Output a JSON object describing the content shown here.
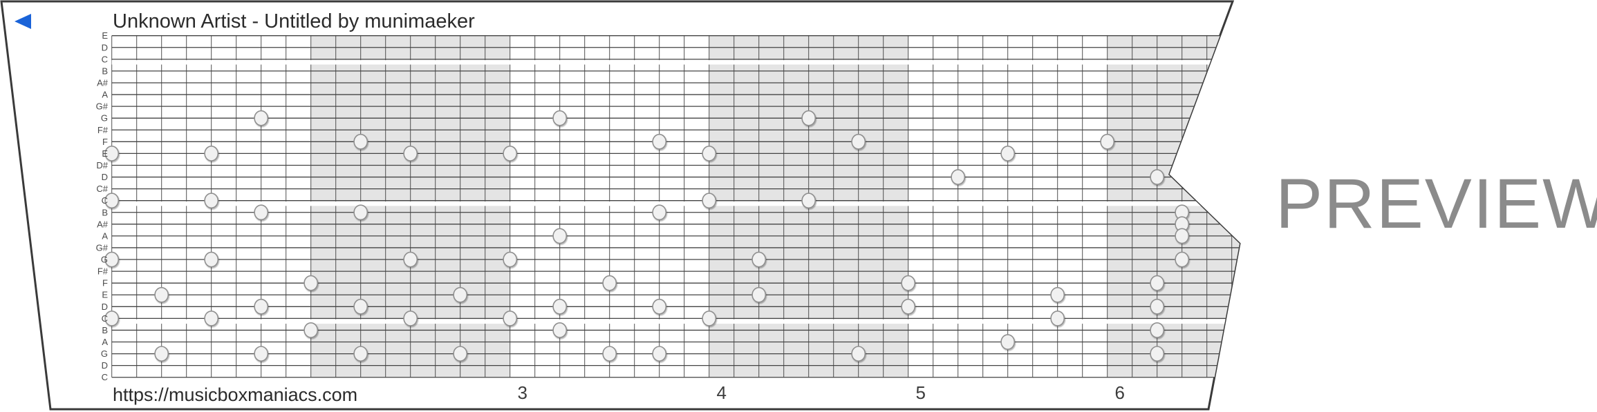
{
  "strip": {
    "title": "Unknown Artist - Untitled by munimaeker",
    "url": "https://musicboxmaniacs.com",
    "measure_numbers": [
      "3",
      "4",
      "5",
      "6"
    ],
    "row_labels": [
      "E",
      "D",
      "C",
      "B",
      "A#",
      "A",
      "G#",
      "G",
      "F#",
      "F",
      "E",
      "D#",
      "D",
      "C#",
      "C",
      "B",
      "A#",
      "A",
      "G#",
      "G",
      "F#",
      "F",
      "E",
      "D",
      "C",
      "B",
      "A",
      "G",
      "D",
      "C"
    ],
    "notes": [
      {
        "col": 0,
        "row": 10,
        "note": "E"
      },
      {
        "col": 0,
        "row": 14,
        "note": "C"
      },
      {
        "col": 0,
        "row": 19,
        "note": "G"
      },
      {
        "col": 0,
        "row": 24,
        "note": "C"
      },
      {
        "col": 2,
        "row": 22,
        "note": "E"
      },
      {
        "col": 2,
        "row": 27,
        "note": "G"
      },
      {
        "col": 4,
        "row": 10,
        "note": "E"
      },
      {
        "col": 4,
        "row": 14,
        "note": "C"
      },
      {
        "col": 4,
        "row": 19,
        "note": "G"
      },
      {
        "col": 4,
        "row": 24,
        "note": "C"
      },
      {
        "col": 6,
        "row": 7,
        "note": "G"
      },
      {
        "col": 6,
        "row": 15,
        "note": "B"
      },
      {
        "col": 6,
        "row": 23,
        "note": "D"
      },
      {
        "col": 6,
        "row": 27,
        "note": "G"
      },
      {
        "col": 8,
        "row": 21,
        "note": "F"
      },
      {
        "col": 8,
        "row": 25,
        "note": "B"
      },
      {
        "col": 10,
        "row": 9,
        "note": "F"
      },
      {
        "col": 10,
        "row": 15,
        "note": "B"
      },
      {
        "col": 10,
        "row": 23,
        "note": "D"
      },
      {
        "col": 10,
        "row": 27,
        "note": "G"
      },
      {
        "col": 12,
        "row": 10,
        "note": "E"
      },
      {
        "col": 12,
        "row": 19,
        "note": "G"
      },
      {
        "col": 12,
        "row": 24,
        "note": "C"
      },
      {
        "col": 14,
        "row": 22,
        "note": "E"
      },
      {
        "col": 14,
        "row": 27,
        "note": "G"
      },
      {
        "col": 16,
        "row": 10,
        "note": "E"
      },
      {
        "col": 16,
        "row": 19,
        "note": "G"
      },
      {
        "col": 16,
        "row": 24,
        "note": "C"
      },
      {
        "col": 18,
        "row": 7,
        "note": "G"
      },
      {
        "col": 18,
        "row": 17,
        "note": "A"
      },
      {
        "col": 18,
        "row": 23,
        "note": "D"
      },
      {
        "col": 18,
        "row": 25,
        "note": "B"
      },
      {
        "col": 20,
        "row": 21,
        "note": "F"
      },
      {
        "col": 20,
        "row": 27,
        "note": "G"
      },
      {
        "col": 22,
        "row": 9,
        "note": "F"
      },
      {
        "col": 22,
        "row": 15,
        "note": "B"
      },
      {
        "col": 22,
        "row": 23,
        "note": "D"
      },
      {
        "col": 22,
        "row": 27,
        "note": "G"
      },
      {
        "col": 24,
        "row": 10,
        "note": "E"
      },
      {
        "col": 24,
        "row": 14,
        "note": "C"
      },
      {
        "col": 24,
        "row": 24,
        "note": "C"
      },
      {
        "col": 26,
        "row": 19,
        "note": "G"
      },
      {
        "col": 26,
        "row": 22,
        "note": "E"
      },
      {
        "col": 28,
        "row": 7,
        "note": "G"
      },
      {
        "col": 28,
        "row": 14,
        "note": "C"
      },
      {
        "col": 30,
        "row": 9,
        "note": "F"
      },
      {
        "col": 30,
        "row": 27,
        "note": "G"
      },
      {
        "col": 32,
        "row": 21,
        "note": "F"
      },
      {
        "col": 32,
        "row": 23,
        "note": "D"
      },
      {
        "col": 34,
        "row": 12,
        "note": "D"
      },
      {
        "col": 36,
        "row": 10,
        "note": "E"
      },
      {
        "col": 36,
        "row": 26,
        "note": "A"
      },
      {
        "col": 38,
        "row": 22,
        "note": "E"
      },
      {
        "col": 38,
        "row": 24,
        "note": "C"
      },
      {
        "col": 40,
        "row": 9,
        "note": "F"
      },
      {
        "col": 42,
        "row": 12,
        "note": "D"
      },
      {
        "col": 42,
        "row": 21,
        "note": "F"
      },
      {
        "col": 42,
        "row": 23,
        "note": "D"
      },
      {
        "col": 42,
        "row": 25,
        "note": "B"
      },
      {
        "col": 42,
        "row": 27,
        "note": "G"
      },
      {
        "col": 43,
        "row": 15,
        "note": "B"
      },
      {
        "col": 43,
        "row": 16,
        "note": "A#"
      },
      {
        "col": 43,
        "row": 17,
        "note": "A"
      },
      {
        "col": 43,
        "row": 19,
        "note": "G"
      }
    ]
  },
  "watermark": {
    "label": "PREVIEW"
  },
  "icons": {
    "play_marker": "left-pointing-triangle"
  },
  "colors": {
    "accent_blue": "#1a63d8",
    "shade_gray": "#e4e4e4",
    "grid_line": "#434343",
    "note_fill": "#f1f1f1",
    "note_stroke": "#8f8f8f",
    "preview_gray": "#8b8b8b"
  }
}
